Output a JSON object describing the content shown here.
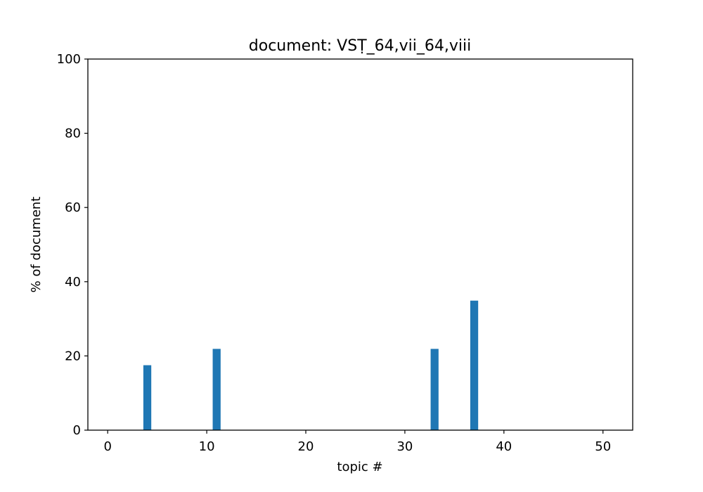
{
  "chart_data": {
    "type": "bar",
    "title": "document: VSṬ_64,vii_64,viii",
    "xlabel": "topic #",
    "ylabel": "% of document",
    "xlim": [
      -2,
      53
    ],
    "ylim": [
      0,
      100
    ],
    "xticks": [
      0,
      10,
      20,
      30,
      40,
      50
    ],
    "yticks": [
      0,
      20,
      40,
      60,
      80,
      100
    ],
    "bar_color": "#1f77b4",
    "x": [
      0,
      1,
      2,
      3,
      4,
      5,
      6,
      7,
      8,
      9,
      10,
      11,
      12,
      13,
      14,
      15,
      16,
      17,
      18,
      19,
      20,
      21,
      22,
      23,
      24,
      25,
      26,
      27,
      28,
      29,
      30,
      31,
      32,
      33,
      34,
      35,
      36,
      37,
      38,
      39,
      40,
      41,
      42,
      43,
      44,
      45,
      46,
      47,
      48,
      49,
      50
    ],
    "values": [
      0,
      0,
      0,
      0,
      17.5,
      0,
      0,
      0,
      0,
      0,
      0,
      21.9,
      0,
      0,
      0,
      0,
      0,
      0,
      0,
      0,
      0,
      0,
      0,
      0,
      0,
      0,
      0,
      0,
      0,
      0,
      0,
      0,
      0,
      21.9,
      0,
      0,
      0,
      34.9,
      0,
      0,
      0,
      0,
      0,
      0,
      0,
      0,
      0,
      0,
      0,
      0,
      0
    ],
    "grid": false
  }
}
